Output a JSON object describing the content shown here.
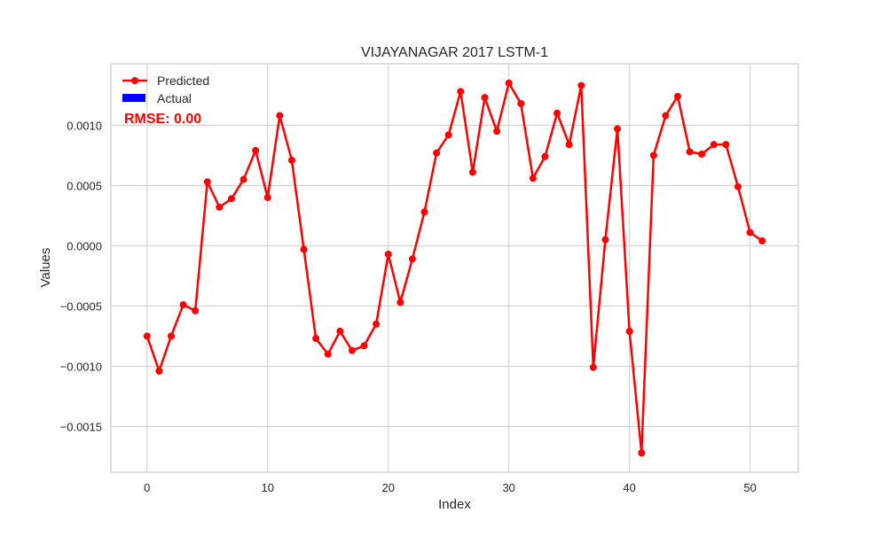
{
  "chart_data": {
    "type": "line",
    "title": "VIJAYANAGAR 2017 LSTM-1",
    "xlabel": "Index",
    "ylabel": "Values",
    "xlim": [
      -3,
      54
    ],
    "ylim": [
      -0.00188,
      0.00151
    ],
    "xticks": [
      0,
      10,
      20,
      30,
      40,
      50
    ],
    "xtick_labels": [
      "0",
      "10",
      "20",
      "30",
      "40",
      "50"
    ],
    "yticks": [
      0.001,
      0.0005,
      0.0,
      -0.0005,
      -0.001,
      -0.0015
    ],
    "ytick_labels": [
      "0.0010",
      "0.0005",
      "0.0000",
      "−0.0005",
      "−0.0010",
      "−0.0015"
    ],
    "grid": true,
    "legend_position": "top-left",
    "series": [
      {
        "name": "Predicted",
        "color": "#ff0000",
        "marker": "circle",
        "x": [
          0,
          1,
          2,
          3,
          4,
          5,
          6,
          7,
          8,
          9,
          10,
          11,
          12,
          13,
          14,
          15,
          16,
          17,
          18,
          19,
          20,
          21,
          22,
          23,
          24,
          25,
          26,
          27,
          28,
          29,
          30,
          31,
          32,
          33,
          34,
          35,
          36,
          37,
          38,
          39,
          40,
          41,
          42,
          43,
          44,
          45,
          46,
          47,
          48,
          49,
          50,
          51
        ],
        "values": [
          -0.00075,
          -0.00104,
          -0.00075,
          -0.00049,
          -0.00054,
          0.00053,
          0.00032,
          0.00039,
          0.00055,
          0.00079,
          0.0004,
          0.00108,
          0.00071,
          -3e-05,
          -0.00077,
          -0.0009,
          -0.00071,
          -0.00087,
          -0.00083,
          -0.00065,
          -7e-05,
          -0.00047,
          -0.00011,
          0.00028,
          0.00077,
          0.00092,
          0.00128,
          0.00061,
          0.00123,
          0.00095,
          0.00135,
          0.00118,
          0.00056,
          0.00074,
          0.0011,
          0.00084,
          0.00133,
          -0.00101,
          5e-05,
          0.00097,
          -0.00071,
          -0.00172,
          0.00075,
          0.00108,
          0.00124,
          0.00078,
          0.00076,
          0.00084,
          0.00084,
          0.00049,
          0.00011,
          4e-05
        ]
      },
      {
        "name": "Actual",
        "color": "#0000ff",
        "values": []
      }
    ],
    "annotation": {
      "text": "RMSE: 0.00",
      "color": "#ff0000"
    }
  }
}
